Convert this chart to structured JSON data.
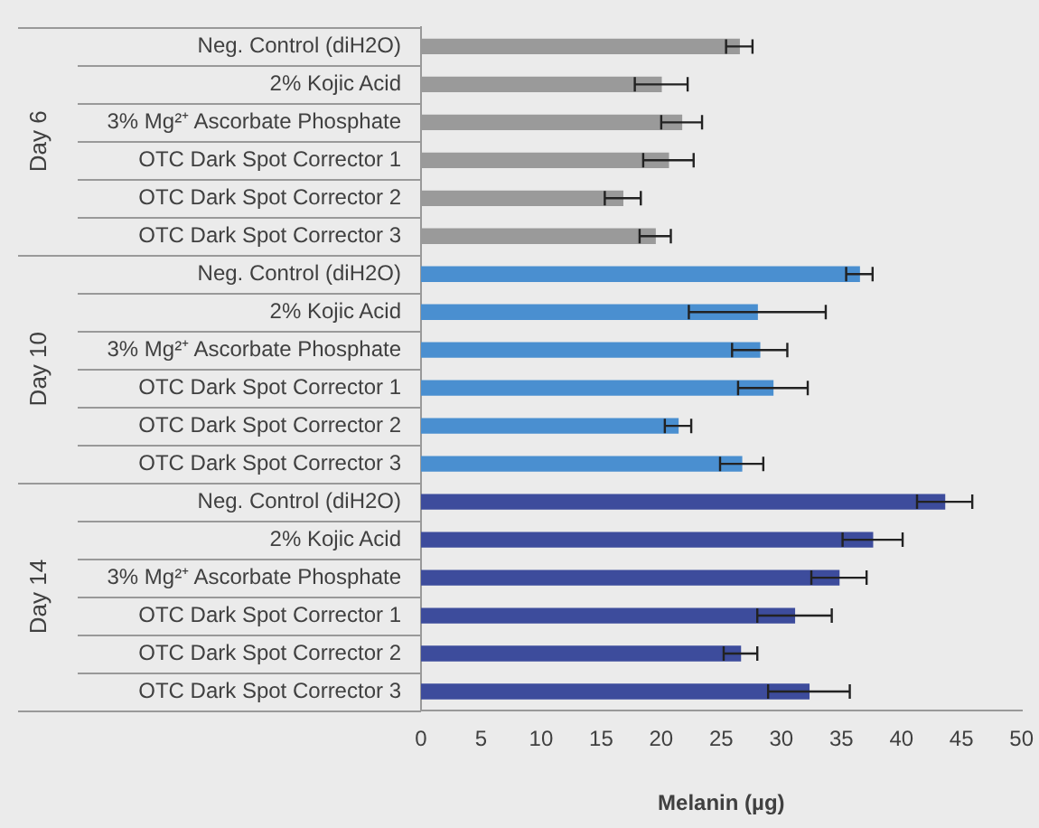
{
  "chart_data": {
    "type": "bar",
    "orientation": "horizontal",
    "xlabel": "Melanin (µg)",
    "categories": [
      "Neg. Control (diH2O)",
      "2% Kojic Acid",
      "3% Mg²⁺ Ascorbate Phosphate",
      "OTC Dark Spot Corrector 1",
      "OTC Dark Spot Corrector 2",
      "OTC Dark Spot Corrector 3",
      "Neg. Control (diH2O)",
      "2% Kojic Acid",
      "3% Mg²⁺ Ascorbate Phosphate",
      "OTC Dark Spot Corrector 1",
      "OTC Dark Spot Corrector 2",
      "OTC Dark Spot Corrector 3",
      "Neg. Control (diH2O)",
      "2% Kojic Acid",
      "3% Mg²⁺ Ascorbate Phosphate",
      "OTC Dark Spot Corrector 1",
      "OTC Dark Spot Corrector 2",
      "OTC Dark Spot Corrector 3"
    ],
    "series": [
      {
        "name": "Day 6",
        "color": "#9a9a9a",
        "values": [
          26.5,
          20.0,
          21.7,
          20.6,
          16.8,
          19.5,
          null,
          null,
          null,
          null,
          null,
          null,
          null,
          null,
          null,
          null,
          null,
          null
        ],
        "errors": [
          1.1,
          2.2,
          1.7,
          2.1,
          1.5,
          1.3,
          null,
          null,
          null,
          null,
          null,
          null,
          null,
          null,
          null,
          null,
          null,
          null
        ]
      },
      {
        "name": "Day 10",
        "color": "#4a8fd0",
        "values": [
          null,
          null,
          null,
          null,
          null,
          null,
          36.5,
          28.0,
          28.2,
          29.3,
          21.4,
          26.7,
          null,
          null,
          null,
          null,
          null,
          null
        ],
        "errors": [
          null,
          null,
          null,
          null,
          null,
          null,
          1.1,
          5.7,
          2.3,
          2.9,
          1.1,
          1.8,
          null,
          null,
          null,
          null,
          null,
          null
        ]
      },
      {
        "name": "Day 14",
        "color": "#3d4c9c",
        "values": [
          null,
          null,
          null,
          null,
          null,
          null,
          null,
          null,
          null,
          null,
          null,
          null,
          43.6,
          37.6,
          34.8,
          31.1,
          26.6,
          32.3
        ],
        "errors": [
          null,
          null,
          null,
          null,
          null,
          null,
          null,
          null,
          null,
          null,
          null,
          null,
          2.3,
          2.5,
          2.3,
          3.1,
          1.4,
          3.4
        ]
      }
    ],
    "xlim": [
      0,
      50
    ],
    "xticks": [
      0,
      5,
      10,
      15,
      20,
      25,
      30,
      35,
      40,
      45,
      50
    ],
    "grid": false,
    "legend": false
  }
}
